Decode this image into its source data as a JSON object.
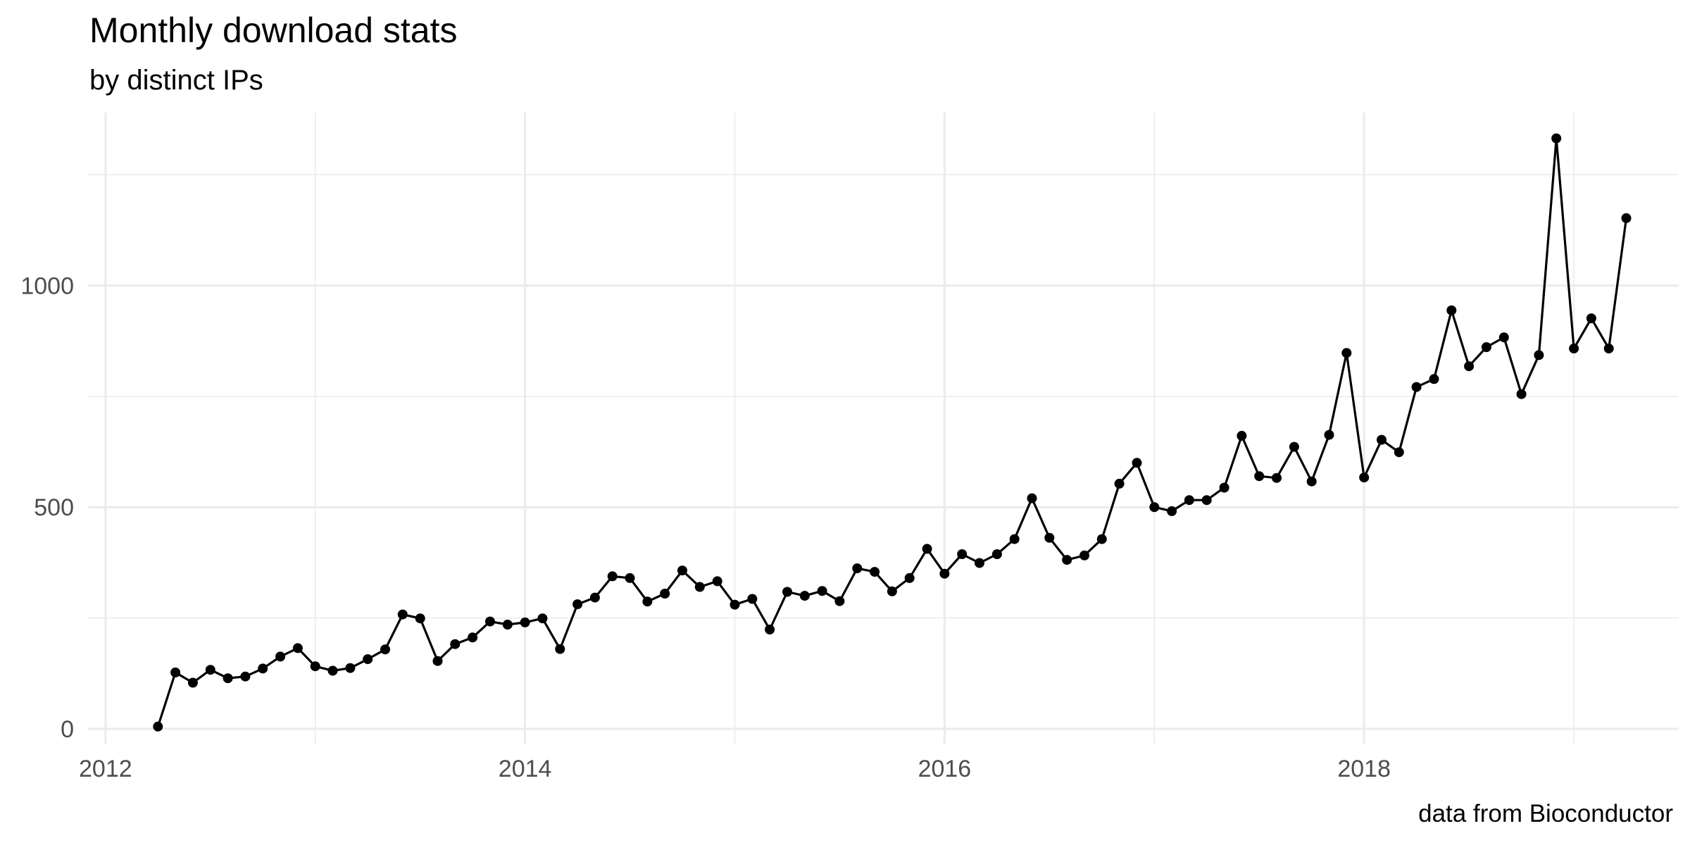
{
  "chart_data": {
    "type": "line",
    "title": "Monthly download stats",
    "subtitle": "by distinct IPs",
    "caption": "data from Bioconductor",
    "xlabel": "",
    "ylabel": "",
    "x_start": "2012-04",
    "x_ticks": [
      "2012",
      "2014",
      "2016",
      "2018"
    ],
    "y_ticks": [
      0,
      500,
      1000
    ],
    "xlim": [
      "2011-12",
      "2019-07"
    ],
    "ylim": [
      -35,
      1390
    ],
    "grid": true,
    "markers": true,
    "series": [
      {
        "values": [
          5,
          127,
          104,
          133,
          114,
          118,
          136,
          163,
          182,
          141,
          131,
          137,
          157,
          179,
          258,
          249,
          153,
          191,
          206,
          242,
          235,
          240,
          249,
          180,
          281,
          296,
          344,
          340,
          287,
          305,
          357,
          320,
          333,
          280,
          293,
          224,
          309,
          300,
          311,
          288,
          362,
          354,
          310,
          340,
          406,
          350,
          394,
          374,
          394,
          428,
          520,
          431,
          381,
          391,
          428,
          553,
          600,
          500,
          491,
          516,
          516,
          544,
          661,
          570,
          566,
          636,
          558,
          663,
          848,
          567,
          652,
          624,
          771,
          789,
          944,
          818,
          861,
          883,
          755,
          843,
          1332,
          858,
          926,
          858,
          1152
        ]
      }
    ]
  }
}
